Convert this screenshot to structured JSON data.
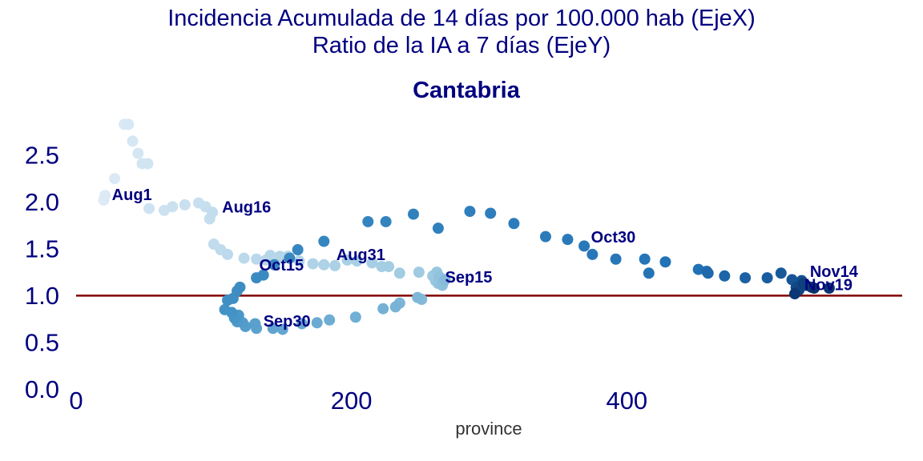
{
  "figure": {
    "title_line1": "Incidencia Acumulada de 14 días por 100.000 hab (EjeX)",
    "title_line2": "Ratio de la IA a 7 días (EjeY)"
  },
  "chart_data": {
    "type": "scatter",
    "title": "Cantabria",
    "xlabel": "province",
    "ylabel": "",
    "xlim": [
      0,
      600
    ],
    "ylim": [
      -0.1,
      2.85
    ],
    "xticks": [
      0,
      200,
      400
    ],
    "yticks": [
      0.0,
      0.5,
      1.0,
      1.5,
      2.0,
      2.5
    ],
    "grid": false,
    "reference_line": {
      "y": 1.0,
      "color": "#800000"
    },
    "colormap": "Blues (light to dark over time)",
    "points": [
      [
        20,
        2.02
      ],
      [
        21,
        2.07
      ],
      [
        28,
        2.25
      ],
      [
        35,
        2.83
      ],
      [
        38,
        2.83
      ],
      [
        41,
        2.65
      ],
      [
        45,
        2.52
      ],
      [
        48,
        2.41
      ],
      [
        52,
        2.41
      ],
      [
        53,
        1.93
      ],
      [
        64,
        1.91
      ],
      [
        70,
        1.95
      ],
      [
        79,
        1.97
      ],
      [
        89,
        1.99
      ],
      [
        94,
        1.95
      ],
      [
        97,
        1.82
      ],
      [
        99,
        1.89
      ],
      [
        100,
        1.55
      ],
      [
        105,
        1.49
      ],
      [
        110,
        1.44
      ],
      [
        122,
        1.4
      ],
      [
        131,
        1.39
      ],
      [
        138,
        1.38
      ],
      [
        141,
        1.43
      ],
      [
        148,
        1.42
      ],
      [
        154,
        1.42
      ],
      [
        162,
        1.37
      ],
      [
        172,
        1.34
      ],
      [
        180,
        1.33
      ],
      [
        188,
        1.32
      ],
      [
        197,
        1.38
      ],
      [
        204,
        1.37
      ],
      [
        215,
        1.35
      ],
      [
        222,
        1.31
      ],
      [
        227,
        1.31
      ],
      [
        235,
        1.24
      ],
      [
        249,
        1.25
      ],
      [
        259,
        1.21
      ],
      [
        261,
        1.16
      ],
      [
        262,
        1.25
      ],
      [
        263,
        1.13
      ],
      [
        264,
        1.2
      ],
      [
        266,
        1.11
      ],
      [
        267,
        1.15
      ],
      [
        268,
        1.17
      ],
      [
        251,
        0.96
      ],
      [
        248,
        0.98
      ],
      [
        235,
        0.92
      ],
      [
        232,
        0.88
      ],
      [
        223,
        0.86
      ],
      [
        203,
        0.77
      ],
      [
        184,
        0.74
      ],
      [
        175,
        0.71
      ],
      [
        164,
        0.7
      ],
      [
        150,
        0.64
      ],
      [
        143,
        0.65
      ],
      [
        131,
        0.65
      ],
      [
        130,
        0.7
      ],
      [
        123,
        0.67
      ],
      [
        121,
        0.71
      ],
      [
        117,
        0.72
      ],
      [
        118,
        0.79
      ],
      [
        115,
        0.76
      ],
      [
        113,
        0.82
      ],
      [
        108,
        0.85
      ],
      [
        110,
        0.95
      ],
      [
        114,
        0.97
      ],
      [
        117,
        1.05
      ],
      [
        119,
        1.09
      ],
      [
        131,
        1.19
      ],
      [
        136,
        1.22
      ],
      [
        144,
        1.33
      ],
      [
        155,
        1.4
      ],
      [
        161,
        1.49
      ],
      [
        180,
        1.58
      ],
      [
        212,
        1.79
      ],
      [
        225,
        1.79
      ],
      [
        245,
        1.87
      ],
      [
        263,
        1.72
      ],
      [
        286,
        1.9
      ],
      [
        301,
        1.88
      ],
      [
        318,
        1.77
      ],
      [
        341,
        1.63
      ],
      [
        357,
        1.6
      ],
      [
        369,
        1.53
      ],
      [
        375,
        1.44
      ],
      [
        392,
        1.39
      ],
      [
        413,
        1.39
      ],
      [
        416,
        1.24
      ],
      [
        428,
        1.36
      ],
      [
        452,
        1.28
      ],
      [
        458,
        1.26
      ],
      [
        459,
        1.24
      ],
      [
        471,
        1.21
      ],
      [
        486,
        1.19
      ],
      [
        502,
        1.19
      ],
      [
        512,
        1.24
      ],
      [
        520,
        1.17
      ],
      [
        527,
        1.16
      ],
      [
        530,
        1.11
      ],
      [
        523,
        1.09
      ],
      [
        525,
        1.06
      ],
      [
        528,
        1.13
      ],
      [
        534,
        1.09
      ],
      [
        522,
        1.02
      ],
      [
        547,
        1.08
      ],
      [
        536,
        1.08
      ]
    ],
    "annotations": [
      {
        "text": "Aug1",
        "x": 26,
        "y": 2.07
      },
      {
        "text": "Aug16",
        "x": 106,
        "y": 1.94
      },
      {
        "text": "Aug31",
        "x": 189,
        "y": 1.43
      },
      {
        "text": "Sep15",
        "x": 268,
        "y": 1.19
      },
      {
        "text": "Sep30",
        "x": 136,
        "y": 0.72
      },
      {
        "text": "Oct15",
        "x": 133,
        "y": 1.32
      },
      {
        "text": "Oct30",
        "x": 374,
        "y": 1.62
      },
      {
        "text": "Nov14",
        "x": 533,
        "y": 1.25
      },
      {
        "text": "Nov19",
        "x": 529,
        "y": 1.11
      }
    ]
  }
}
